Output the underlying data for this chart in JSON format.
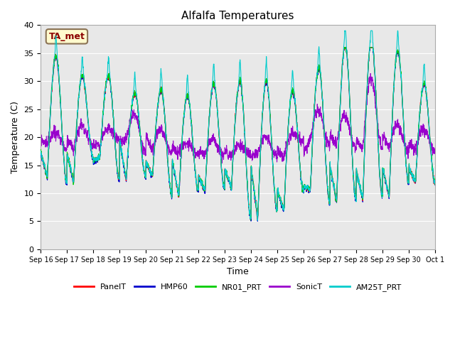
{
  "title": "Alfalfa Temperatures",
  "xlabel": "Time",
  "ylabel": "Temperature (C)",
  "ylim": [
    0,
    40
  ],
  "yticks": [
    0,
    5,
    10,
    15,
    20,
    25,
    30,
    35,
    40
  ],
  "annotation": "TA_met",
  "annotation_color": "#8B0000",
  "annotation_bg": "#FFFACD",
  "series_colors": {
    "PanelT": "#FF0000",
    "HMP60": "#0000CC",
    "NR01_PRT": "#00CC00",
    "SonicT": "#9900CC",
    "AM25T_PRT": "#00CCCC"
  },
  "bg_color": "#E8E8E8",
  "fig_bg": "#FFFFFF",
  "xtick_labels": [
    "Sep 16",
    "Sep 17",
    "Sep 18",
    "Sep 19",
    "Sep 20",
    "Sep 21",
    "Sep 22",
    "Sep 23",
    "Sep 24",
    "Sep 25",
    "Sep 26",
    "Sep 27",
    "Sep 28",
    "Sep 29",
    "Sep 30",
    "Oct 1"
  ],
  "n_days": 15,
  "samples_per_day": 144,
  "day_max": [
    34.5,
    31.0,
    31.0,
    28.0,
    28.5,
    27.5,
    29.5,
    30.0,
    30.0,
    28.5,
    32.5,
    36.5,
    37.5,
    35.5,
    29.5
  ],
  "day_min": [
    13.0,
    12.0,
    16.5,
    12.5,
    13.0,
    9.5,
    10.5,
    11.0,
    5.5,
    7.0,
    10.5,
    8.5,
    9.0,
    9.5,
    12.0
  ],
  "sonic_max": [
    21.0,
    22.0,
    21.5,
    24.0,
    21.5,
    19.0,
    19.5,
    18.5,
    20.0,
    20.5,
    25.0,
    24.0,
    30.5,
    22.0,
    21.5
  ],
  "sonic_min": [
    19.0,
    18.0,
    18.5,
    19.5,
    17.5,
    17.0,
    17.0,
    16.5,
    17.0,
    16.5,
    19.5,
    18.5,
    18.0,
    18.0,
    17.5
  ]
}
